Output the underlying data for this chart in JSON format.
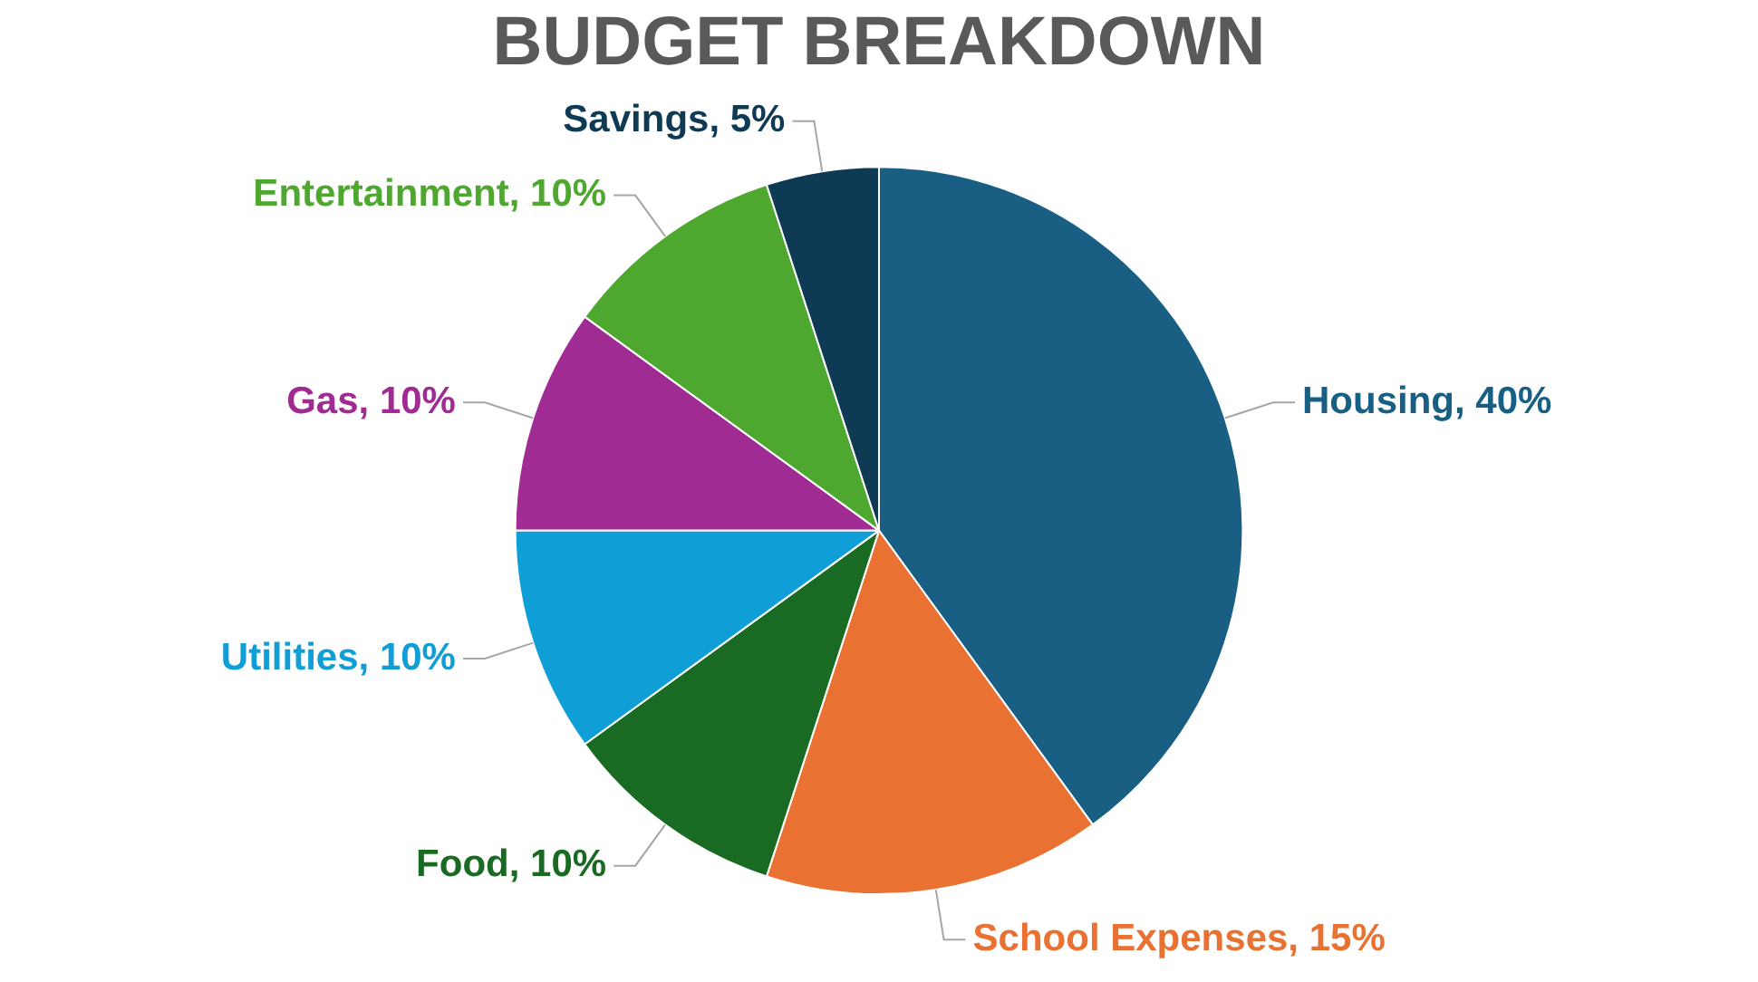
{
  "chart_data": {
    "type": "pie",
    "title": "BUDGET BREAKDOWN",
    "categories": [
      "Housing",
      "School Expenses",
      "Food",
      "Utilities",
      "Gas",
      "Entertainment",
      "Savings"
    ],
    "values": [
      40,
      15,
      10,
      10,
      10,
      10,
      5
    ],
    "value_labels": [
      "40%",
      "15%",
      "10%",
      "10%",
      "10%",
      "10%",
      "5%"
    ],
    "colors": [
      "#185f83",
      "#e97132",
      "#196b24",
      "#0f9ed5",
      "#a02b93",
      "#4ea72e",
      "#0e3a54"
    ],
    "legend": false
  }
}
